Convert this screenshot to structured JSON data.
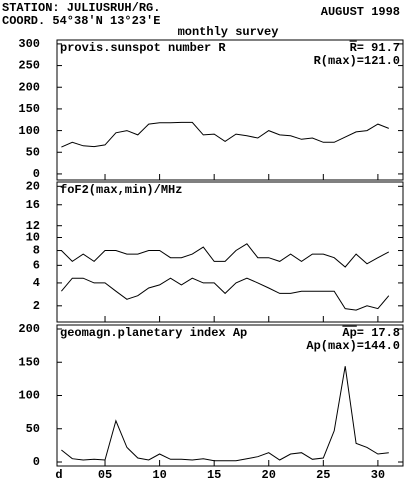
{
  "header": {
    "station": "STATION: JULIUSRUH/RG.",
    "coord": "COORD. 54°38'N 13°23'E",
    "date": "AUGUST 1998",
    "subtitle": "monthly survey"
  },
  "chart_data": [
    {
      "type": "line",
      "title": "provis.sunspot number R",
      "annotations": [
        "R= 91.7",
        "R(max)=121.0"
      ],
      "x": [
        1,
        2,
        3,
        4,
        5,
        6,
        7,
        8,
        9,
        10,
        11,
        12,
        13,
        14,
        15,
        16,
        17,
        18,
        19,
        20,
        21,
        22,
        23,
        24,
        25,
        26,
        27,
        28,
        29,
        30,
        31
      ],
      "xlim": [
        0.6,
        32.3
      ],
      "ylim": [
        -14,
        309
      ],
      "yticks": [
        0,
        50,
        100,
        150,
        200,
        250,
        300
      ],
      "series": [
        {
          "color": "#000000",
          "values": [
            62,
            73,
            65,
            63,
            67,
            95,
            100,
            90,
            115,
            118,
            118,
            119,
            119,
            90,
            92,
            75,
            92,
            88,
            83,
            100,
            90,
            88,
            80,
            83,
            73,
            73,
            85,
            97,
            100,
            115,
            105
          ]
        }
      ]
    },
    {
      "type": "line",
      "title": "foF2(max,min)/MHz",
      "scale": "sqrt",
      "x": [
        1,
        2,
        3,
        4,
        5,
        6,
        7,
        8,
        9,
        10,
        11,
        12,
        13,
        14,
        15,
        16,
        17,
        18,
        19,
        20,
        21,
        22,
        23,
        24,
        25,
        26,
        27,
        28,
        29,
        30,
        31
      ],
      "xlim": [
        0.6,
        32.3
      ],
      "ylim": [
        1,
        21
      ],
      "yticks": [
        2,
        4,
        6,
        8,
        10,
        12,
        16,
        20
      ],
      "series": [
        {
          "color": "#000000",
          "values": [
            8,
            6.5,
            7.5,
            6.5,
            8,
            8,
            7.5,
            7.5,
            8,
            8,
            7,
            7,
            7.5,
            8.5,
            6.5,
            6.5,
            8,
            9,
            7,
            7,
            6.5,
            7.5,
            6.5,
            7.5,
            7.5,
            7,
            5.8,
            7.5,
            6.2,
            7,
            7.8
          ]
        },
        {
          "color": "#000000",
          "values": [
            3.2,
            4.5,
            4.5,
            4,
            4,
            3.2,
            2.5,
            2.8,
            3.5,
            3.8,
            4.5,
            3.8,
            4.5,
            4,
            4,
            3,
            4,
            4.5,
            4,
            3.5,
            3,
            3,
            3.2,
            3.2,
            3.2,
            3.2,
            1.8,
            1.7,
            2,
            1.8,
            2.8
          ]
        }
      ]
    },
    {
      "type": "line",
      "title": "geomagn.planetary index Ap",
      "annotations": [
        "Ap= 17.8",
        "Ap(max)=144.0"
      ],
      "x": [
        1,
        2,
        3,
        4,
        5,
        6,
        7,
        8,
        9,
        10,
        11,
        12,
        13,
        14,
        15,
        16,
        17,
        18,
        19,
        20,
        21,
        22,
        23,
        24,
        25,
        26,
        27,
        28,
        29,
        30,
        31
      ],
      "xlim": [
        0.6,
        32.3
      ],
      "ylim": [
        -6,
        206
      ],
      "yticks": [
        0,
        50,
        100,
        150,
        200
      ],
      "xlabel": "d",
      "xticks": [
        {
          "value": 5,
          "label": "05"
        },
        10,
        15,
        20,
        25,
        30
      ],
      "series": [
        {
          "color": "#000000",
          "values": [
            18,
            5,
            3,
            4,
            3,
            62,
            22,
            6,
            3,
            12,
            4,
            4,
            3,
            5,
            2,
            2,
            2,
            5,
            8,
            14,
            3,
            12,
            14,
            4,
            6,
            47,
            144,
            28,
            22,
            12,
            14
          ]
        }
      ]
    }
  ]
}
